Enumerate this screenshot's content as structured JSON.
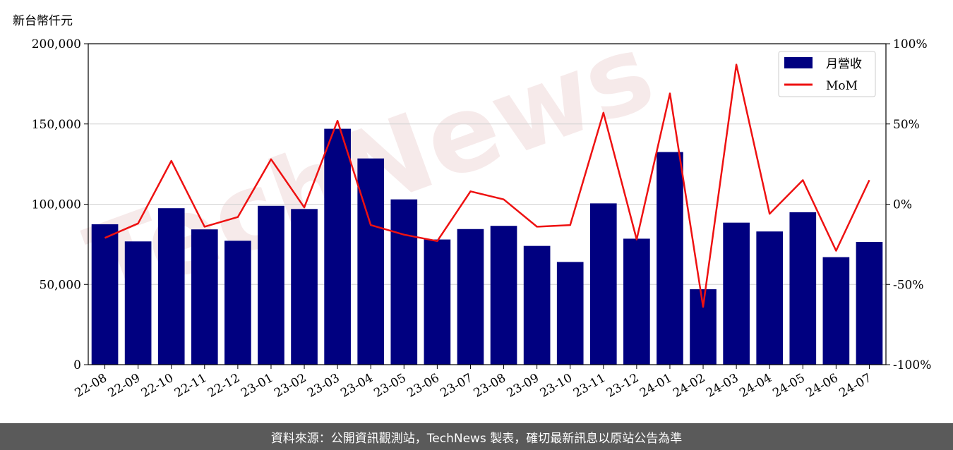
{
  "chart_data": {
    "type": "bar+line",
    "unit_label": "新台幣仟元",
    "categories": [
      "22-08",
      "22-09",
      "22-10",
      "22-11",
      "22-12",
      "23-01",
      "23-02",
      "23-03",
      "23-04",
      "23-05",
      "23-06",
      "23-07",
      "23-08",
      "23-09",
      "23-10",
      "23-11",
      "23-12",
      "24-01",
      "24-02",
      "24-03",
      "24-04",
      "24-05",
      "24-06",
      "24-07"
    ],
    "series": [
      {
        "name": "月營收",
        "kind": "bar",
        "axis": "left",
        "color": "#000080",
        "values": [
          87500,
          76800,
          97500,
          84300,
          77200,
          99000,
          97000,
          147000,
          128500,
          103000,
          78000,
          84500,
          86500,
          74000,
          64000,
          100500,
          78500,
          132500,
          47000,
          88500,
          83000,
          95000,
          67000,
          76500
        ]
      },
      {
        "name": "MoM",
        "kind": "line",
        "axis": "right",
        "color": "#ee1111",
        "values": [
          -21,
          -12,
          27,
          -14,
          -8,
          28,
          -2,
          52,
          -13,
          -19,
          -23,
          8,
          3,
          -14,
          -13,
          57,
          -22,
          69,
          -64,
          87,
          -6,
          15,
          -29,
          15
        ]
      }
    ],
    "y_left": {
      "min": 0,
      "max": 200000,
      "ticks": [
        0,
        50000,
        100000,
        150000,
        200000
      ],
      "tick_labels": [
        "0",
        "50,000",
        "100,000",
        "150,000",
        "200,000"
      ]
    },
    "y_right": {
      "min": -100,
      "max": 100,
      "ticks": [
        -100,
        -50,
        0,
        50,
        100
      ],
      "tick_labels": [
        "-100%",
        "-50%",
        "0%",
        "50%",
        "100%"
      ]
    },
    "grid": "horizontal",
    "legend_position": "top-right"
  },
  "watermark": "TechNews",
  "footer": {
    "text": "資料來源：公開資訊觀測站，TechNews 製表，確切最新訊息以原站公告為準"
  }
}
